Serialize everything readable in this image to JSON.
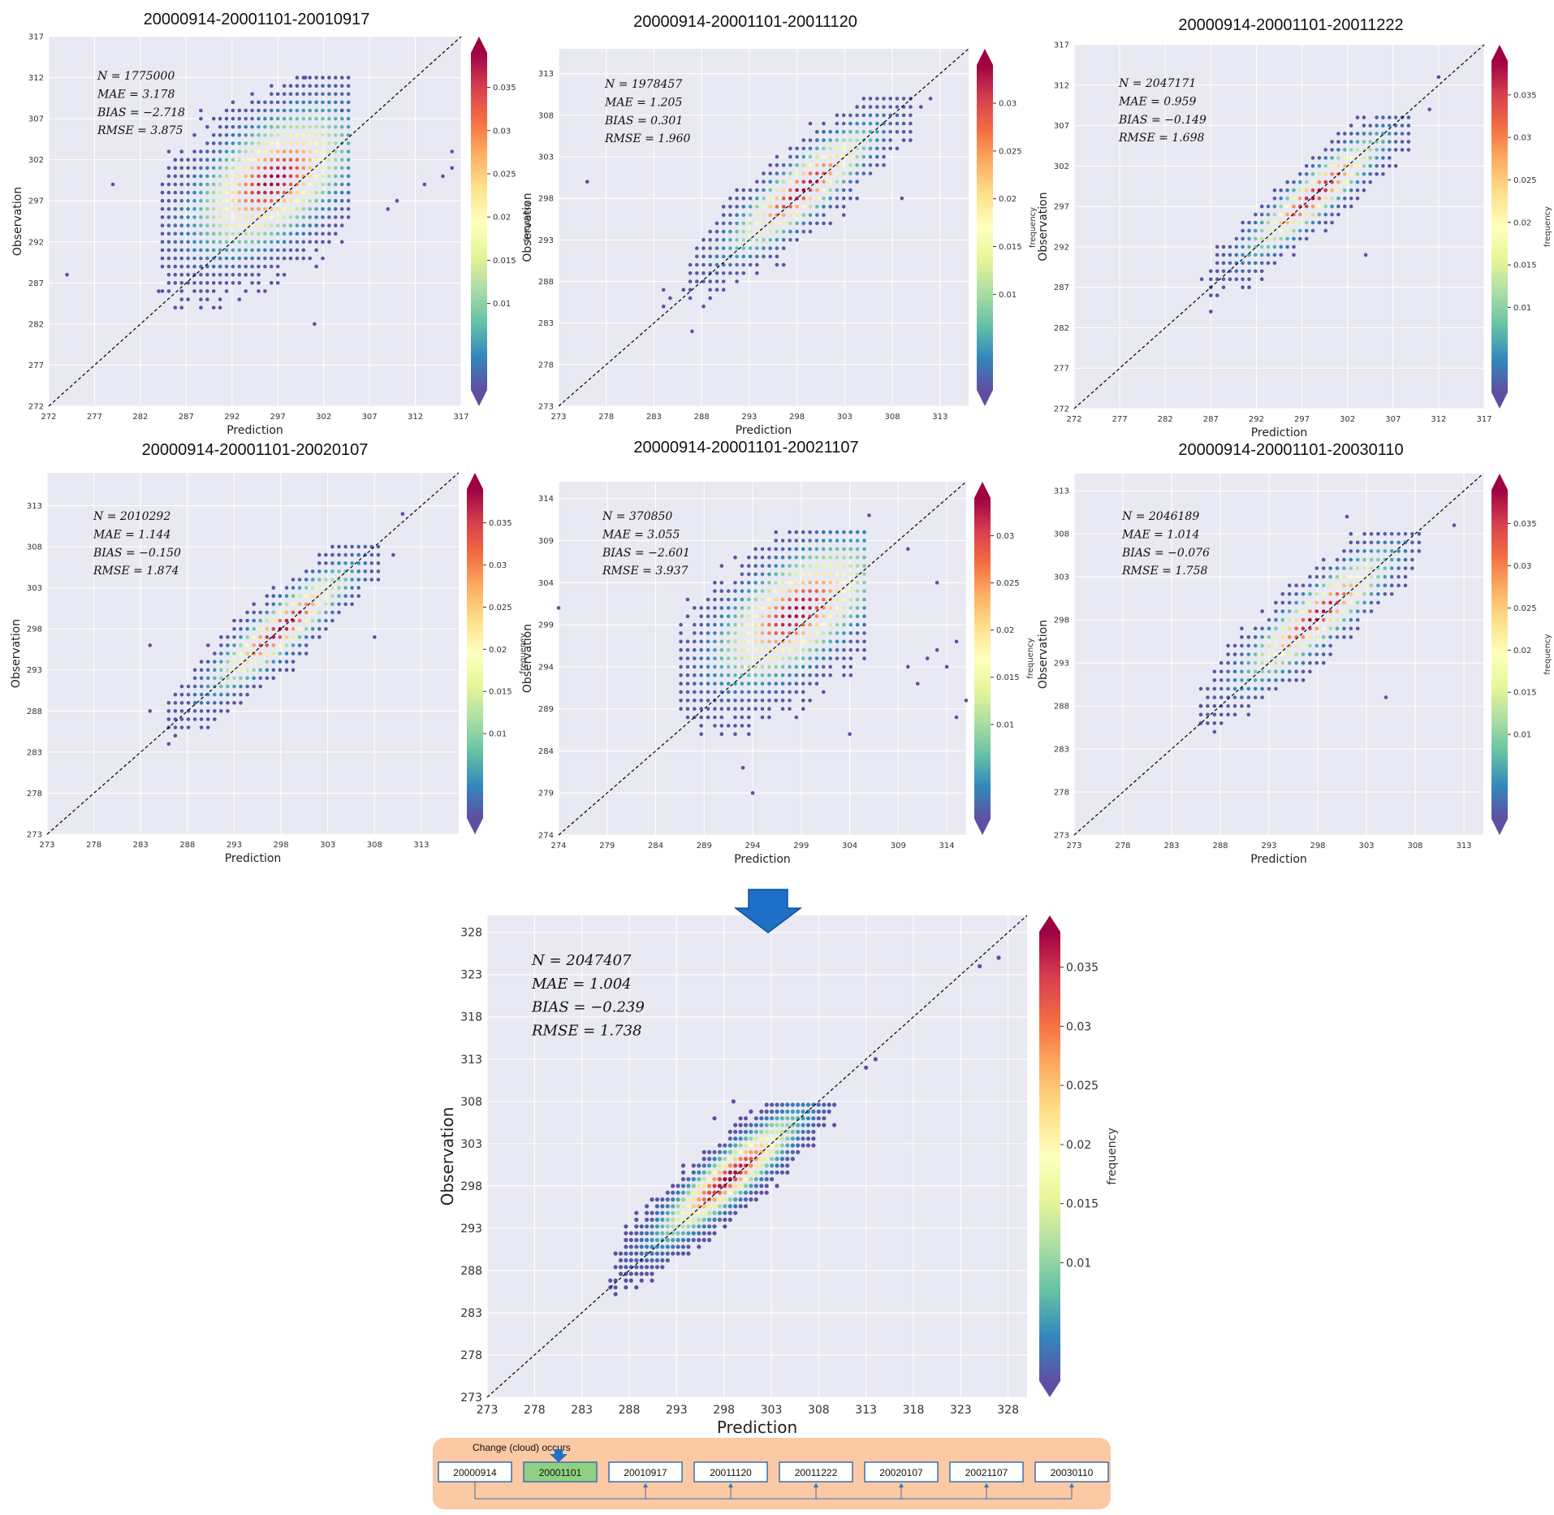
{
  "colors": {
    "plot_bg": "#e8e9f2",
    "grid": "#ffffff",
    "point_low": "#5e4fa2",
    "timeline_bg": "#fbc9a4",
    "timeline_box": "#3a6fb0",
    "timeline_highlight": "#8fd17f",
    "arrow": "#1f6fc7"
  },
  "colorbar": {
    "label": "frequency",
    "stops": [
      "#5e4fa2",
      "#3288bd",
      "#66c2a5",
      "#abdda4",
      "#e6f598",
      "#ffffbf",
      "#fee08b",
      "#fdae61",
      "#f46d43",
      "#d53e4f",
      "#9e0142"
    ]
  },
  "chart_data": [
    {
      "type": "scatter",
      "title": "20000914-20001101-20010917",
      "xlabel": "Prediction",
      "ylabel": "Observation",
      "xlim": [
        272,
        317
      ],
      "ylim": [
        272,
        317
      ],
      "xticks": [
        272,
        277,
        282,
        287,
        292,
        297,
        302,
        307,
        312,
        317
      ],
      "yticks": [
        272,
        277,
        282,
        287,
        292,
        297,
        302,
        307,
        312,
        317
      ],
      "cbar_ticks": [
        0.01,
        0.015,
        0.02,
        0.025,
        0.03,
        0.035
      ],
      "cbar_max": 0.039,
      "stats": [
        "N = 1775000",
        "MAE = 3.178",
        "BIAS = −2.718",
        "RMSE = 3.875"
      ],
      "centre": [
        296.5,
        299.5
      ],
      "band": {
        "x0": 287.0,
        "x1": 305.5,
        "y0": 294.0,
        "y1": 303.0
      },
      "spread": 7.5,
      "cluster_y": [
        277,
        312
      ],
      "cluster_x": [
        283,
        305
      ],
      "outliers": [
        [
          274,
          288
        ],
        [
          279,
          299
        ],
        [
          309,
          296
        ],
        [
          310,
          297
        ],
        [
          313,
          299
        ],
        [
          315,
          300
        ],
        [
          316,
          301
        ],
        [
          316,
          303
        ],
        [
          300,
          312
        ],
        [
          284,
          286
        ],
        [
          301,
          282
        ],
        [
          304,
          308
        ]
      ]
    },
    {
      "type": "scatter",
      "title": "20000914-20001101-20011120",
      "xlabel": "Prediction",
      "ylabel": "Observation",
      "xlim": [
        273,
        316
      ],
      "ylim": [
        273,
        316
      ],
      "xticks": [
        273,
        278,
        283,
        288,
        293,
        298,
        303,
        308,
        313
      ],
      "yticks": [
        273,
        278,
        283,
        288,
        293,
        298,
        303,
        308,
        313
      ],
      "cbar_ticks": [
        0.01,
        0.015,
        0.02,
        0.025,
        0.03
      ],
      "cbar_max": 0.034,
      "stats": [
        "N = 1978457",
        "MAE = 1.205",
        "BIAS = 0.301",
        "RMSE = 1.960"
      ],
      "centre": [
        298.5,
        299.0
      ],
      "band": {
        "x0": 286.0,
        "x1": 309.0,
        "y0": 288.0,
        "y1": 309.0
      },
      "spread": 3.5,
      "cluster_y": [
        278,
        310
      ],
      "cluster_x": [
        284,
        310
      ],
      "outliers": [
        [
          276,
          300
        ],
        [
          284,
          287
        ],
        [
          309,
          298
        ],
        [
          311,
          309
        ],
        [
          312,
          310
        ],
        [
          287,
          282
        ]
      ]
    },
    {
      "type": "scatter",
      "title": "20000914-20001101-20011222",
      "xlabel": "Prediction",
      "ylabel": "Observation",
      "xlim": [
        272,
        317
      ],
      "ylim": [
        272,
        317
      ],
      "xticks": [
        272,
        277,
        282,
        287,
        292,
        297,
        302,
        307,
        312,
        317
      ],
      "yticks": [
        272,
        277,
        282,
        287,
        292,
        297,
        302,
        307,
        312,
        317
      ],
      "cbar_ticks": [
        0.01,
        0.015,
        0.02,
        0.025,
        0.03,
        0.035
      ],
      "cbar_max": 0.039,
      "stats": [
        "N = 2047171",
        "MAE = 0.959",
        "BIAS = −0.149",
        "RMSE = 1.698"
      ],
      "centre": [
        298.5,
        298.5
      ],
      "band": {
        "x0": 287.0,
        "x1": 309.0,
        "y0": 288.0,
        "y1": 308.0
      },
      "spread": 2.8,
      "cluster_y": [
        277,
        308
      ],
      "cluster_x": [
        287,
        309
      ],
      "outliers": [
        [
          311,
          309
        ],
        [
          312,
          313
        ],
        [
          304,
          291
        ],
        [
          286,
          288
        ]
      ]
    },
    {
      "type": "scatter",
      "title": "20000914-20001101-20020107",
      "xlabel": "Prediction",
      "ylabel": "Observation",
      "xlim": [
        273,
        317
      ],
      "ylim": [
        273,
        317
      ],
      "xticks": [
        273,
        278,
        283,
        288,
        293,
        298,
        303,
        308,
        313
      ],
      "yticks": [
        273,
        278,
        283,
        288,
        293,
        298,
        303,
        308,
        313
      ],
      "cbar_ticks": [
        0.01,
        0.015,
        0.02,
        0.025,
        0.03,
        0.035
      ],
      "cbar_max": 0.039,
      "stats": [
        "N = 2010292",
        "MAE = 1.144",
        "BIAS = −0.150",
        "RMSE = 1.874"
      ],
      "centre": [
        298.0,
        298.0
      ],
      "band": {
        "x0": 286.0,
        "x1": 309.0,
        "y0": 288.0,
        "y1": 308.0
      },
      "spread": 3.0,
      "cluster_y": [
        278,
        308
      ],
      "cluster_x": [
        286,
        309
      ],
      "outliers": [
        [
          284,
          296
        ],
        [
          308,
          297
        ],
        [
          311,
          312
        ],
        [
          310,
          307
        ],
        [
          284,
          288
        ],
        [
          286,
          286
        ]
      ]
    },
    {
      "type": "scatter",
      "title": "20000914-20001101-20021107",
      "xlabel": "Prediction",
      "ylabel": "Observation",
      "xlim": [
        274,
        316
      ],
      "ylim": [
        274,
        316
      ],
      "xticks": [
        274,
        279,
        284,
        289,
        294,
        299,
        304,
        309,
        314
      ],
      "yticks": [
        274,
        279,
        284,
        289,
        294,
        299,
        304,
        309,
        314
      ],
      "cbar_ticks": [
        0.01,
        0.015,
        0.02,
        0.025,
        0.03
      ],
      "cbar_max": 0.034,
      "stats": [
        "N = 370850",
        "MAE = 3.055",
        "BIAS = −2.601",
        "RMSE = 3.937"
      ],
      "centre": [
        298.5,
        300.5
      ],
      "band": {
        "x0": 289.0,
        "x1": 305.0,
        "y0": 295.0,
        "y1": 305.0
      },
      "spread": 6.5,
      "cluster_y": [
        280,
        310
      ],
      "cluster_x": [
        281,
        306
      ],
      "outliers": [
        [
          274,
          301
        ],
        [
          304,
          286
        ],
        [
          313,
          304
        ],
        [
          311,
          292
        ],
        [
          312,
          295
        ],
        [
          313,
          296
        ],
        [
          314,
          294
        ],
        [
          315,
          297
        ],
        [
          310,
          294
        ],
        [
          316,
          290
        ],
        [
          315,
          288
        ],
        [
          306,
          312
        ],
        [
          310,
          308
        ],
        [
          294,
          279
        ],
        [
          293,
          282
        ]
      ]
    },
    {
      "type": "scatter",
      "title": "20000914-20001101-20030110",
      "xlabel": "Prediction",
      "ylabel": "Observation",
      "xlim": [
        273,
        315
      ],
      "ylim": [
        273,
        315
      ],
      "xticks": [
        273,
        278,
        283,
        288,
        293,
        298,
        303,
        308,
        313
      ],
      "yticks": [
        273,
        278,
        283,
        288,
        293,
        298,
        303,
        308,
        313
      ],
      "cbar_ticks": [
        0.01,
        0.015,
        0.02,
        0.025,
        0.03,
        0.035
      ],
      "cbar_max": 0.039,
      "stats": [
        "N = 2046189",
        "MAE = 1.014",
        "BIAS = −0.076",
        "RMSE = 1.758"
      ],
      "centre": [
        298.0,
        298.5
      ],
      "band": {
        "x0": 286.0,
        "x1": 309.0,
        "y0": 288.0,
        "y1": 309.0
      },
      "spread": 3.2,
      "cluster_y": [
        278,
        308
      ],
      "cluster_x": [
        286,
        309
      ],
      "outliers": [
        [
          312,
          309
        ],
        [
          301,
          310
        ],
        [
          286,
          288
        ],
        [
          305,
          289
        ]
      ]
    },
    {
      "type": "scatter",
      "title": "",
      "xlabel": "Prediction",
      "ylabel": "Observation",
      "xlim": [
        273,
        330
      ],
      "ylim": [
        273,
        330
      ],
      "xticks": [
        273,
        278,
        283,
        288,
        293,
        298,
        303,
        308,
        313,
        318,
        323,
        328
      ],
      "yticks": [
        273,
        278,
        283,
        288,
        293,
        298,
        303,
        308,
        313,
        318,
        323,
        328
      ],
      "cbar_ticks": [
        0.01,
        0.015,
        0.02,
        0.025,
        0.03,
        0.035
      ],
      "cbar_max": 0.038,
      "stats": [
        "N = 2047407",
        "MAE = 1.004",
        "BIAS = −0.239",
        "RMSE = 1.738"
      ],
      "centre": [
        298.5,
        299.0
      ],
      "band": {
        "x0": 286.0,
        "x1": 310.0,
        "y0": 289.0,
        "y1": 309.0
      },
      "spread": 3.0,
      "cluster_y": [
        278,
        308
      ],
      "cluster_x": [
        286,
        310
      ],
      "outliers": [
        [
          313,
          312
        ],
        [
          314,
          313
        ],
        [
          325,
          324
        ],
        [
          327,
          325
        ],
        [
          299,
          308
        ],
        [
          297,
          306
        ]
      ]
    }
  ],
  "timeline": {
    "caption": "Change (cloud) occurs",
    "dates": [
      "20000914",
      "20001101",
      "20010917",
      "20011120",
      "20011222",
      "20020107",
      "20021107",
      "20030110"
    ],
    "highlight_index": 1
  }
}
